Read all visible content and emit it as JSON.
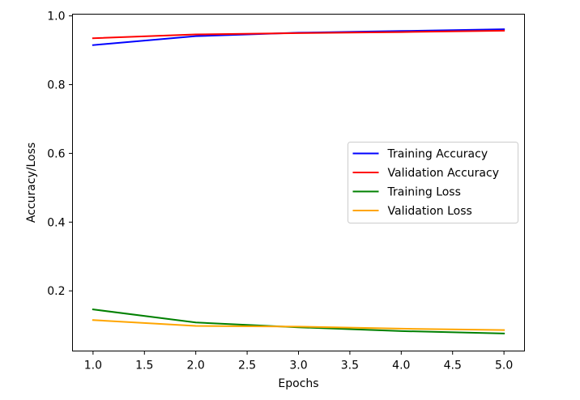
{
  "chart_data": {
    "type": "line",
    "title": "",
    "xlabel": "Epochs",
    "ylabel": "Accuracy/Loss",
    "xlim": [
      0.8,
      5.2
    ],
    "ylim": [
      0.025,
      1.005
    ],
    "xticks": [
      1.0,
      1.5,
      2.0,
      2.5,
      3.0,
      3.5,
      4.0,
      4.5,
      5.0
    ],
    "xtick_labels": [
      "1.0",
      "1.5",
      "2.0",
      "2.5",
      "3.0",
      "3.5",
      "4.0",
      "4.5",
      "5.0"
    ],
    "yticks": [
      0.2,
      0.4,
      0.6,
      0.8,
      1.0
    ],
    "ytick_labels": [
      "0.2",
      "0.4",
      "0.6",
      "0.8",
      "1.0"
    ],
    "x": [
      1,
      2,
      3,
      4,
      5
    ],
    "grid": false,
    "legend_position": "center-right",
    "series": [
      {
        "name": "Training Accuracy",
        "color": "#0000ff",
        "values": [
          0.915,
          0.941,
          0.951,
          0.956,
          0.961
        ]
      },
      {
        "name": "Validation Accuracy",
        "color": "#ff0000",
        "values": [
          0.935,
          0.946,
          0.95,
          0.953,
          0.957
        ]
      },
      {
        "name": "Training Loss",
        "color": "#008000",
        "values": [
          0.146,
          0.108,
          0.094,
          0.083,
          0.076
        ]
      },
      {
        "name": "Validation Loss",
        "color": "#ffa500",
        "values": [
          0.115,
          0.098,
          0.096,
          0.09,
          0.086
        ]
      }
    ]
  }
}
